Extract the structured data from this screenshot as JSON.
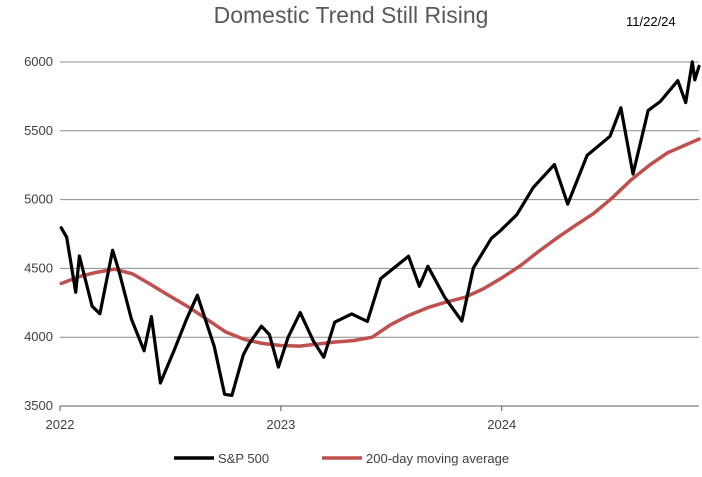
{
  "chart_data": {
    "type": "line",
    "title": "Domestic Trend Still Rising",
    "date_label": "11/22/24",
    "xlabel": "",
    "ylabel": "",
    "x_range": [
      "2022-01-01",
      "2024-11-22"
    ],
    "ylim": [
      3500,
      6000
    ],
    "y_ticks": [
      3500,
      4000,
      4500,
      5000,
      5500,
      6000
    ],
    "x_ticks": [
      {
        "label": "2022",
        "date": "2022-01-01"
      },
      {
        "label": "2023",
        "date": "2023-01-01"
      },
      {
        "label": "2024",
        "date": "2024-01-01"
      }
    ],
    "grid": "horizontal",
    "legend": "bottom",
    "series": [
      {
        "name": "S&P 500",
        "color": "#000000",
        "points": [
          [
            "2022-01-03",
            4796
          ],
          [
            "2022-01-12",
            4726
          ],
          [
            "2022-01-27",
            4326
          ],
          [
            "2022-02-02",
            4590
          ],
          [
            "2022-02-23",
            4225
          ],
          [
            "2022-03-08",
            4170
          ],
          [
            "2022-03-29",
            4632
          ],
          [
            "2022-04-08",
            4488
          ],
          [
            "2022-04-29",
            4132
          ],
          [
            "2022-05-20",
            3901
          ],
          [
            "2022-06-01",
            4150
          ],
          [
            "2022-06-16",
            3667
          ],
          [
            "2022-07-08",
            3899
          ],
          [
            "2022-07-29",
            4130
          ],
          [
            "2022-08-16",
            4305
          ],
          [
            "2022-09-13",
            3932
          ],
          [
            "2022-09-30",
            3585
          ],
          [
            "2022-10-12",
            3577
          ],
          [
            "2022-10-31",
            3872
          ],
          [
            "2022-11-10",
            3956
          ],
          [
            "2022-11-30",
            4080
          ],
          [
            "2022-12-13",
            4019
          ],
          [
            "2022-12-28",
            3783
          ],
          [
            "2023-01-13",
            3999
          ],
          [
            "2023-02-02",
            4179
          ],
          [
            "2023-02-24",
            3970
          ],
          [
            "2023-03-13",
            3855
          ],
          [
            "2023-03-31",
            4109
          ],
          [
            "2023-04-28",
            4169
          ],
          [
            "2023-05-24",
            4115
          ],
          [
            "2023-06-15",
            4426
          ],
          [
            "2023-07-31",
            4589
          ],
          [
            "2023-08-18",
            4370
          ],
          [
            "2023-09-01",
            4515
          ],
          [
            "2023-09-29",
            4288
          ],
          [
            "2023-10-27",
            4117
          ],
          [
            "2023-11-15",
            4502
          ],
          [
            "2023-12-15",
            4719
          ],
          [
            "2023-12-29",
            4770
          ],
          [
            "2024-01-26",
            4891
          ],
          [
            "2024-02-22",
            5087
          ],
          [
            "2024-03-28",
            5254
          ],
          [
            "2024-04-19",
            4967
          ],
          [
            "2024-05-21",
            5321
          ],
          [
            "2024-06-28",
            5460
          ],
          [
            "2024-07-16",
            5667
          ],
          [
            "2024-08-05",
            5186
          ],
          [
            "2024-08-30",
            5648
          ],
          [
            "2024-09-19",
            5713
          ],
          [
            "2024-10-18",
            5864
          ],
          [
            "2024-10-31",
            5705
          ],
          [
            "2024-11-11",
            6001
          ],
          [
            "2024-11-15",
            5870
          ],
          [
            "2024-11-22",
            5969
          ]
        ]
      },
      {
        "name": "200-day moving average",
        "color": "#c0504d",
        "points": [
          [
            "2022-01-03",
            4390
          ],
          [
            "2022-02-01",
            4440
          ],
          [
            "2022-03-01",
            4470
          ],
          [
            "2022-04-01",
            4495
          ],
          [
            "2022-05-01",
            4460
          ],
          [
            "2022-06-01",
            4380
          ],
          [
            "2022-07-01",
            4300
          ],
          [
            "2022-08-01",
            4220
          ],
          [
            "2022-09-01",
            4130
          ],
          [
            "2022-10-01",
            4040
          ],
          [
            "2022-11-01",
            3985
          ],
          [
            "2022-12-01",
            3955
          ],
          [
            "2023-01-01",
            3940
          ],
          [
            "2023-02-01",
            3935
          ],
          [
            "2023-03-01",
            3950
          ],
          [
            "2023-04-01",
            3965
          ],
          [
            "2023-05-01",
            3975
          ],
          [
            "2023-06-01",
            4000
          ],
          [
            "2023-07-01",
            4090
          ],
          [
            "2023-08-01",
            4160
          ],
          [
            "2023-09-01",
            4215
          ],
          [
            "2023-10-01",
            4255
          ],
          [
            "2023-11-01",
            4290
          ],
          [
            "2023-12-01",
            4350
          ],
          [
            "2024-01-01",
            4430
          ],
          [
            "2024-02-01",
            4520
          ],
          [
            "2024-03-01",
            4620
          ],
          [
            "2024-04-01",
            4720
          ],
          [
            "2024-05-01",
            4810
          ],
          [
            "2024-06-01",
            4900
          ],
          [
            "2024-07-01",
            5010
          ],
          [
            "2024-08-01",
            5140
          ],
          [
            "2024-09-01",
            5250
          ],
          [
            "2024-10-01",
            5340
          ],
          [
            "2024-11-22",
            5440
          ]
        ]
      }
    ]
  }
}
